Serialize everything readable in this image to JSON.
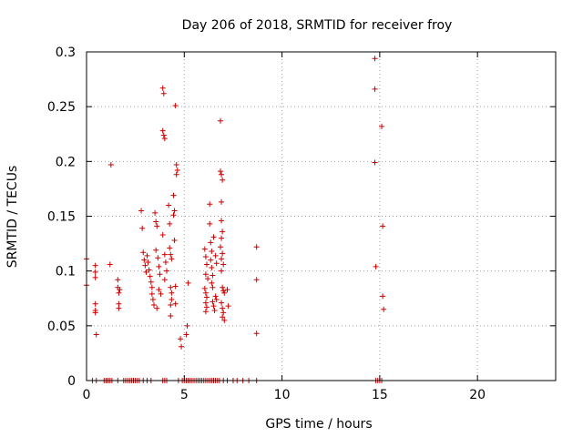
{
  "chart_data": {
    "type": "scatter",
    "title": "Day 206 of 2018, SRMTID for receiver froy",
    "xlabel": "GPS time / hours",
    "ylabel": "SRMTID / TECUs",
    "xlim": [
      0,
      24
    ],
    "ylim": [
      0,
      0.3
    ],
    "x_ticks": [
      0,
      5,
      10,
      15,
      20
    ],
    "x_tick_labels": [
      "0",
      "5",
      "10",
      "15",
      "20"
    ],
    "y_ticks": [
      0,
      0.05,
      0.1,
      0.15,
      0.2,
      0.25,
      0.3
    ],
    "y_tick_labels": [
      "0",
      "0.05",
      "0.1",
      "0.15",
      "0.2",
      "0.25",
      "0.3"
    ],
    "grid": true,
    "marker": "+",
    "marker_color": "#cc0000",
    "series": [
      {
        "name": "SRMTID",
        "points": [
          [
            0.0,
            0.111
          ],
          [
            0.0,
            0.087
          ],
          [
            0.45,
            0.105
          ],
          [
            0.45,
            0.099
          ],
          [
            0.45,
            0.094
          ],
          [
            0.45,
            0.07
          ],
          [
            0.45,
            0.064
          ],
          [
            0.45,
            0.062
          ],
          [
            0.5,
            0.042
          ],
          [
            1.2,
            0.106
          ],
          [
            1.25,
            0.197
          ],
          [
            1.6,
            0.092
          ],
          [
            1.6,
            0.085
          ],
          [
            1.65,
            0.08
          ],
          [
            1.65,
            0.07
          ],
          [
            1.65,
            0.066
          ],
          [
            1.7,
            0.083
          ],
          [
            2.8,
            0.155
          ],
          [
            2.85,
            0.139
          ],
          [
            2.9,
            0.117
          ],
          [
            2.95,
            0.11
          ],
          [
            3.0,
            0.105
          ],
          [
            3.05,
            0.099
          ],
          [
            3.1,
            0.114
          ],
          [
            3.15,
            0.108
          ],
          [
            3.2,
            0.101
          ],
          [
            3.25,
            0.095
          ],
          [
            3.3,
            0.09
          ],
          [
            3.35,
            0.085
          ],
          [
            3.35,
            0.079
          ],
          [
            3.4,
            0.074
          ],
          [
            3.45,
            0.069
          ],
          [
            3.5,
            0.153
          ],
          [
            3.55,
            0.145
          ],
          [
            3.6,
            0.141
          ],
          [
            3.55,
            0.119
          ],
          [
            3.65,
            0.112
          ],
          [
            3.7,
            0.104
          ],
          [
            3.75,
            0.097
          ],
          [
            3.7,
            0.083
          ],
          [
            3.8,
            0.079
          ],
          [
            3.6,
            0.066
          ],
          [
            3.9,
            0.267
          ],
          [
            3.95,
            0.262
          ],
          [
            3.9,
            0.228
          ],
          [
            3.95,
            0.224
          ],
          [
            4.0,
            0.221
          ],
          [
            3.9,
            0.133
          ],
          [
            4.0,
            0.115
          ],
          [
            4.05,
            0.108
          ],
          [
            4.1,
            0.1
          ],
          [
            4.0,
            0.092
          ],
          [
            4.2,
            0.16
          ],
          [
            4.25,
            0.143
          ],
          [
            4.25,
            0.121
          ],
          [
            4.3,
            0.115
          ],
          [
            4.35,
            0.111
          ],
          [
            4.3,
            0.085
          ],
          [
            4.35,
            0.08
          ],
          [
            4.35,
            0.074
          ],
          [
            4.3,
            0.069
          ],
          [
            4.3,
            0.059
          ],
          [
            4.45,
            0.169
          ],
          [
            4.5,
            0.155
          ],
          [
            4.45,
            0.151
          ],
          [
            4.5,
            0.128
          ],
          [
            4.55,
            0.086
          ],
          [
            4.55,
            0.07
          ],
          [
            4.55,
            0.251
          ],
          [
            4.6,
            0.197
          ],
          [
            4.65,
            0.192
          ],
          [
            4.6,
            0.188
          ],
          [
            4.8,
            0.038
          ],
          [
            4.85,
            0.031
          ],
          [
            5.1,
            0.042
          ],
          [
            5.15,
            0.05
          ],
          [
            5.2,
            0.089
          ],
          [
            6.05,
            0.12
          ],
          [
            6.1,
            0.113
          ],
          [
            6.15,
            0.106
          ],
          [
            6.1,
            0.097
          ],
          [
            6.05,
            0.084
          ],
          [
            6.1,
            0.08
          ],
          [
            6.15,
            0.076
          ],
          [
            6.1,
            0.071
          ],
          [
            6.15,
            0.067
          ],
          [
            6.1,
            0.063
          ],
          [
            6.2,
            0.093
          ],
          [
            6.3,
            0.161
          ],
          [
            6.3,
            0.143
          ],
          [
            6.35,
            0.126
          ],
          [
            6.4,
            0.118
          ],
          [
            6.35,
            0.11
          ],
          [
            6.4,
            0.103
          ],
          [
            6.45,
            0.096
          ],
          [
            6.4,
            0.089
          ],
          [
            6.45,
            0.085
          ],
          [
            6.5,
            0.131
          ],
          [
            6.45,
            0.072
          ],
          [
            6.5,
            0.068
          ],
          [
            6.55,
            0.064
          ],
          [
            6.6,
            0.114
          ],
          [
            6.65,
            0.107
          ],
          [
            6.6,
            0.077
          ],
          [
            6.65,
            0.074
          ],
          [
            6.85,
            0.237
          ],
          [
            6.85,
            0.191
          ],
          [
            6.9,
            0.188
          ],
          [
            6.95,
            0.183
          ],
          [
            6.9,
            0.163
          ],
          [
            6.9,
            0.146
          ],
          [
            6.95,
            0.136
          ],
          [
            6.9,
            0.13
          ],
          [
            6.85,
            0.122
          ],
          [
            6.95,
            0.116
          ],
          [
            6.9,
            0.111
          ],
          [
            7.0,
            0.106
          ],
          [
            6.9,
            0.1
          ],
          [
            6.95,
            0.085
          ],
          [
            7.0,
            0.082
          ],
          [
            7.05,
            0.08
          ],
          [
            6.9,
            0.071
          ],
          [
            6.95,
            0.066
          ],
          [
            7.0,
            0.062
          ],
          [
            6.95,
            0.058
          ],
          [
            7.05,
            0.055
          ],
          [
            7.2,
            0.083
          ],
          [
            7.25,
            0.068
          ],
          [
            8.7,
            0.122
          ],
          [
            8.7,
            0.092
          ],
          [
            8.7,
            0.043
          ],
          [
            14.75,
            0.294
          ],
          [
            14.75,
            0.266
          ],
          [
            14.75,
            0.199
          ],
          [
            14.8,
            0.104
          ],
          [
            15.1,
            0.232
          ],
          [
            15.15,
            0.141
          ],
          [
            15.15,
            0.077
          ],
          [
            15.2,
            0.065
          ],
          [
            0.3,
            0.0
          ],
          [
            0.5,
            0.0
          ],
          [
            0.9,
            0.0
          ],
          [
            1.0,
            0.0
          ],
          [
            1.1,
            0.0
          ],
          [
            1.2,
            0.0
          ],
          [
            1.3,
            0.0
          ],
          [
            1.6,
            0.0
          ],
          [
            1.9,
            0.0
          ],
          [
            2.0,
            0.0
          ],
          [
            2.1,
            0.0
          ],
          [
            2.2,
            0.0
          ],
          [
            2.3,
            0.0
          ],
          [
            2.4,
            0.0
          ],
          [
            2.5,
            0.0
          ],
          [
            2.6,
            0.0
          ],
          [
            2.7,
            0.0
          ],
          [
            2.9,
            0.0
          ],
          [
            3.1,
            0.0
          ],
          [
            3.3,
            0.0
          ],
          [
            3.9,
            0.0
          ],
          [
            4.0,
            0.0
          ],
          [
            4.1,
            0.0
          ],
          [
            4.7,
            0.0
          ],
          [
            4.9,
            0.0
          ],
          [
            5.0,
            0.0
          ],
          [
            5.1,
            0.0
          ],
          [
            5.2,
            0.0
          ],
          [
            5.3,
            0.0
          ],
          [
            5.4,
            0.0
          ],
          [
            5.5,
            0.0
          ],
          [
            5.6,
            0.0
          ],
          [
            5.7,
            0.0
          ],
          [
            5.8,
            0.0
          ],
          [
            5.9,
            0.0
          ],
          [
            6.0,
            0.0
          ],
          [
            6.1,
            0.0
          ],
          [
            6.2,
            0.0
          ],
          [
            6.3,
            0.0
          ],
          [
            6.4,
            0.0
          ],
          [
            6.5,
            0.0
          ],
          [
            6.6,
            0.0
          ],
          [
            6.7,
            0.0
          ],
          [
            6.8,
            0.0
          ],
          [
            7.0,
            0.0
          ],
          [
            7.2,
            0.0
          ],
          [
            7.5,
            0.0
          ],
          [
            7.7,
            0.0
          ],
          [
            8.0,
            0.0
          ],
          [
            8.3,
            0.0
          ],
          [
            8.7,
            0.0
          ],
          [
            14.8,
            0.0
          ],
          [
            14.9,
            0.0
          ],
          [
            15.0,
            0.0
          ],
          [
            15.1,
            0.0
          ]
        ]
      }
    ]
  }
}
